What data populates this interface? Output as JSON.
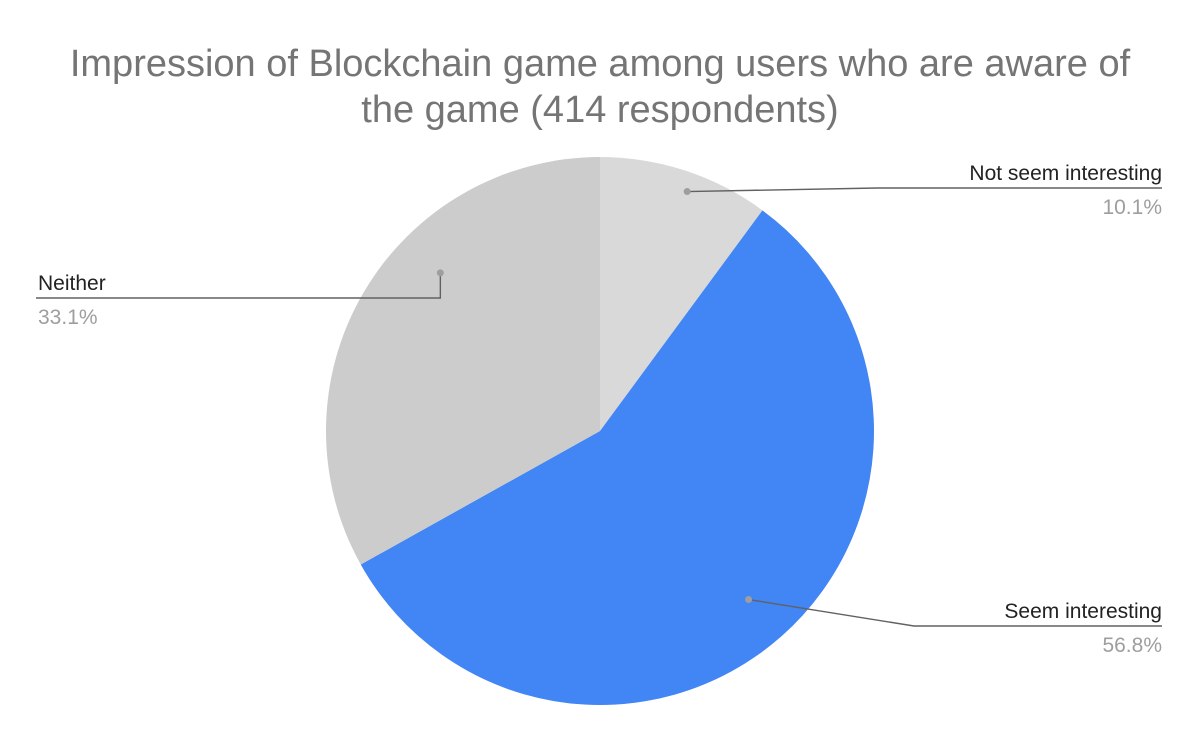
{
  "chart_data": {
    "type": "pie",
    "title_lines": [
      "Impression of Blockchain game among users who are aware of",
      "the game (414 respondents)"
    ],
    "slices": [
      {
        "label": "Not seem interesting",
        "value": 10.1,
        "value_label": "10.1%",
        "color": "#d9d9d9"
      },
      {
        "label": "Seem interesting",
        "value": 56.8,
        "value_label": "56.8%",
        "color": "#4285f4"
      },
      {
        "label": "Neither",
        "value": 33.1,
        "value_label": "33.1%",
        "color": "#cccccc"
      }
    ],
    "start_angle": "12 o'clock",
    "direction": "clockwise",
    "legend": "none"
  }
}
